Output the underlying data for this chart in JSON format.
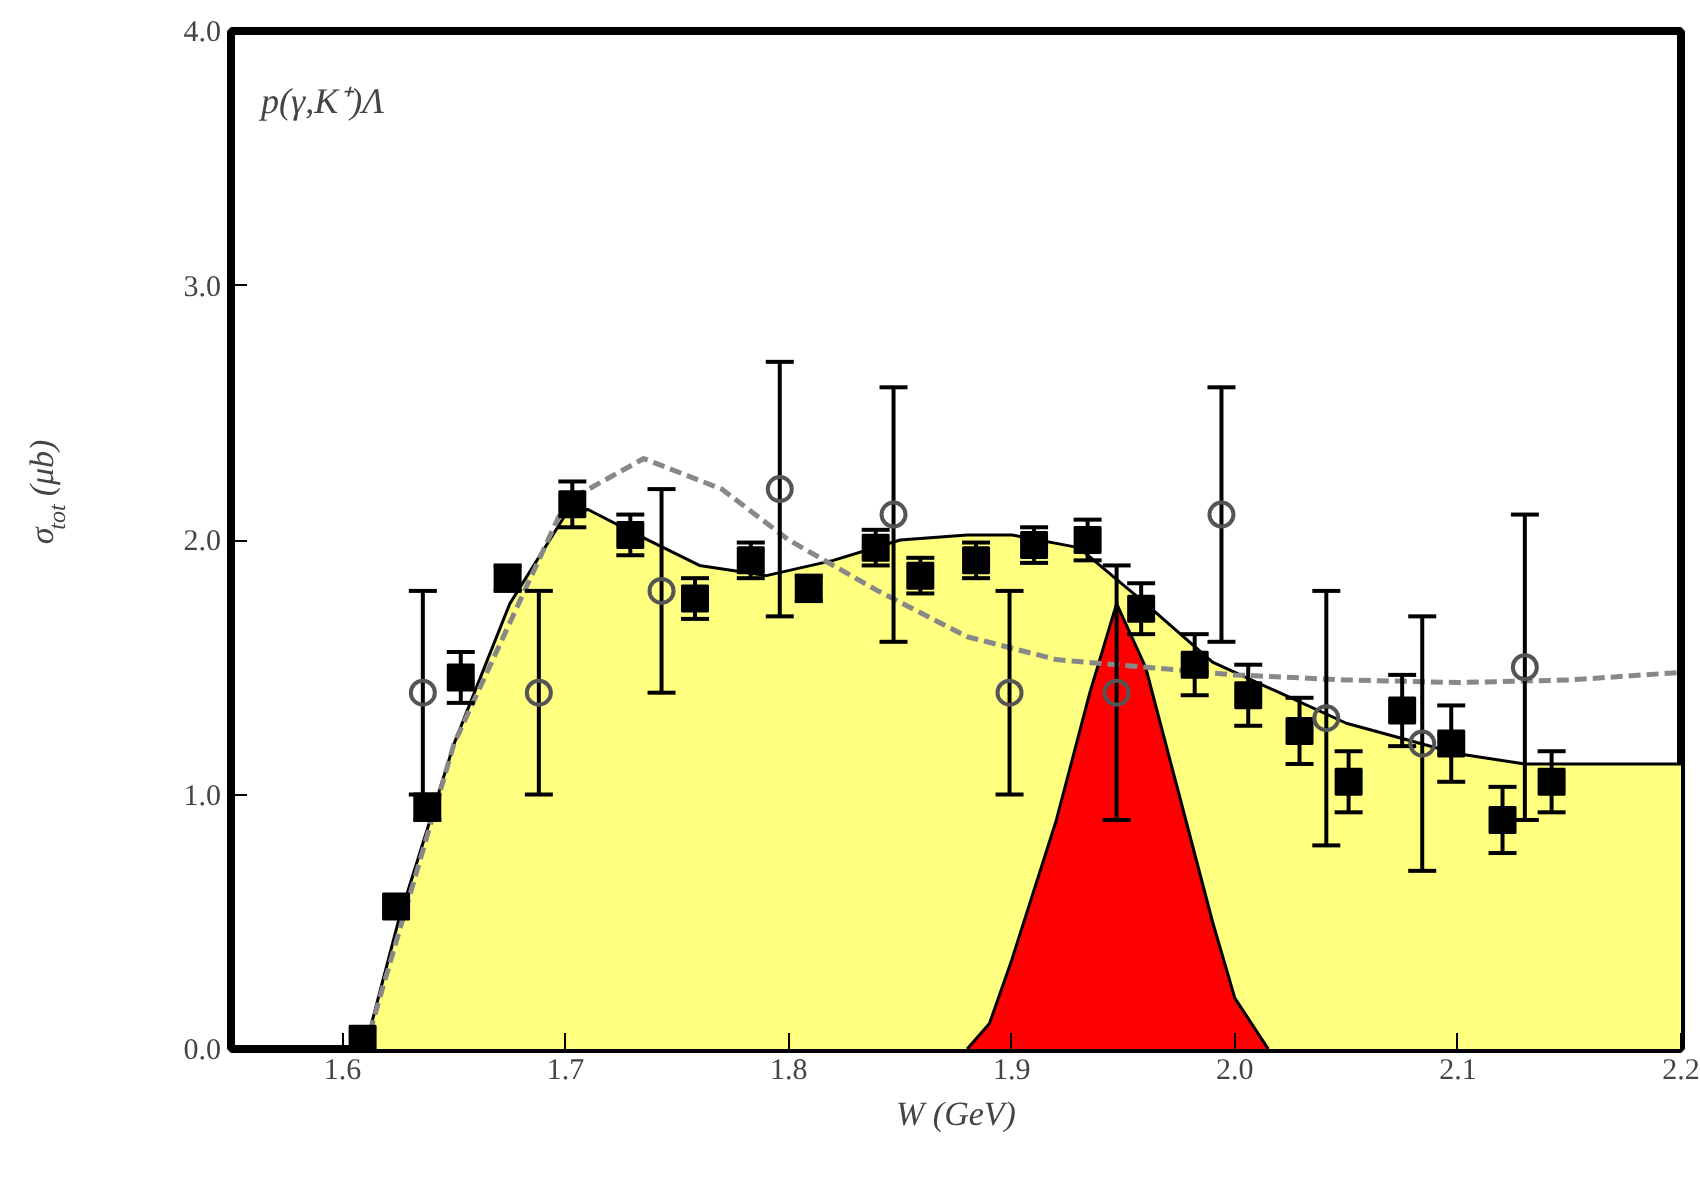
{
  "chart_data": {
    "type": "scatter",
    "xlabel": "W (GeV)",
    "ylabel": "σ$_{tot}$ (μb)",
    "annotations": [
      "p(γ,K⁺)Λ"
    ],
    "xlim": [
      1.55,
      2.2
    ],
    "ylim": [
      0,
      4
    ],
    "xticks": [
      {
        "value": 1.6,
        "label": "1.6"
      },
      {
        "value": 1.7,
        "label": "1.7"
      },
      {
        "value": 1.8,
        "label": "1.8"
      },
      {
        "value": 1.9,
        "label": "1.9"
      },
      {
        "value": 2.0,
        "label": "2.0"
      },
      {
        "value": 2.1,
        "label": "2.1"
      },
      {
        "value": 2.2,
        "label": "2.2"
      }
    ],
    "yticks": [
      {
        "value": 0,
        "label": "0.0"
      },
      {
        "value": 1,
        "label": "1.0"
      },
      {
        "value": 2,
        "label": "2.0"
      },
      {
        "value": 3,
        "label": "3.0"
      },
      {
        "value": 4,
        "label": "4.0"
      }
    ],
    "grid": false,
    "series": [
      {
        "type": "area",
        "color": "#ffff80",
        "line_style": "solid",
        "x": [
          1.61,
          1.625,
          1.65,
          1.675,
          1.7,
          1.71,
          1.73,
          1.76,
          1.79,
          1.82,
          1.85,
          1.88,
          1.9,
          1.93,
          1.96,
          1.99,
          2.02,
          2.05,
          2.1,
          2.13,
          2.2
        ],
        "values": [
          0,
          0.5,
          1.2,
          1.75,
          2.1,
          2.12,
          2.03,
          1.9,
          1.86,
          1.92,
          2.0,
          2.02,
          2.02,
          1.97,
          1.75,
          1.52,
          1.4,
          1.28,
          1.16,
          1.12,
          1.12
        ]
      },
      {
        "type": "area",
        "color": "#ff0000",
        "line_style": "solid",
        "x": [
          1.88,
          1.89,
          1.9,
          1.92,
          1.935,
          1.947,
          1.96,
          1.975,
          1.99,
          2.0,
          2.015
        ],
        "values": [
          0,
          0.1,
          0.35,
          0.9,
          1.4,
          1.75,
          1.5,
          1.0,
          0.5,
          0.2,
          0
        ]
      },
      {
        "type": "line",
        "color": "#888888",
        "line_style": "dashed",
        "x": [
          1.61,
          1.65,
          1.7,
          1.735,
          1.77,
          1.8,
          1.84,
          1.88,
          1.92,
          1.96,
          2.0,
          2.05,
          2.1,
          2.15,
          2.2
        ],
        "values": [
          0,
          1.2,
          2.15,
          2.32,
          2.2,
          2.0,
          1.8,
          1.62,
          1.53,
          1.5,
          1.47,
          1.45,
          1.44,
          1.45,
          1.48
        ]
      },
      {
        "type": "scatter",
        "marker": "square",
        "color": "#000000",
        "x": [
          1.609,
          1.624,
          1.638,
          1.653,
          1.674,
          1.703,
          1.729,
          1.758,
          1.783,
          1.809,
          1.839,
          1.859,
          1.884,
          1.91,
          1.934,
          1.958,
          1.982,
          2.006,
          2.029,
          2.051,
          2.075,
          2.097,
          2.12,
          2.142
        ],
        "values": [
          0.04,
          0.56,
          0.95,
          1.46,
          1.85,
          2.14,
          2.02,
          1.77,
          1.92,
          1.81,
          1.97,
          1.86,
          1.92,
          1.98,
          2.0,
          1.73,
          1.51,
          1.39,
          1.25,
          1.05,
          1.33,
          1.2,
          0.9,
          1.05
        ],
        "errors": [
          null,
          null,
          0.05,
          0.1,
          0.05,
          0.09,
          0.08,
          0.08,
          0.07,
          0.05,
          0.07,
          0.07,
          0.07,
          0.07,
          0.08,
          0.1,
          0.12,
          0.12,
          0.13,
          0.12,
          0.14,
          0.15,
          0.13,
          0.12
        ]
      },
      {
        "type": "scatter",
        "marker": "circle",
        "color": "#555555",
        "x": [
          1.636,
          1.688,
          1.743,
          1.796,
          1.847,
          1.899,
          1.947,
          1.994,
          2.041,
          2.084,
          2.13
        ],
        "values": [
          1.4,
          1.4,
          1.8,
          2.2,
          2.1,
          1.4,
          1.4,
          2.1,
          1.3,
          1.2,
          1.5
        ],
        "errors": [
          0.4,
          0.4,
          0.4,
          0.5,
          0.5,
          0.4,
          0.5,
          0.5,
          0.5,
          0.5,
          0.6
        ]
      }
    ]
  }
}
